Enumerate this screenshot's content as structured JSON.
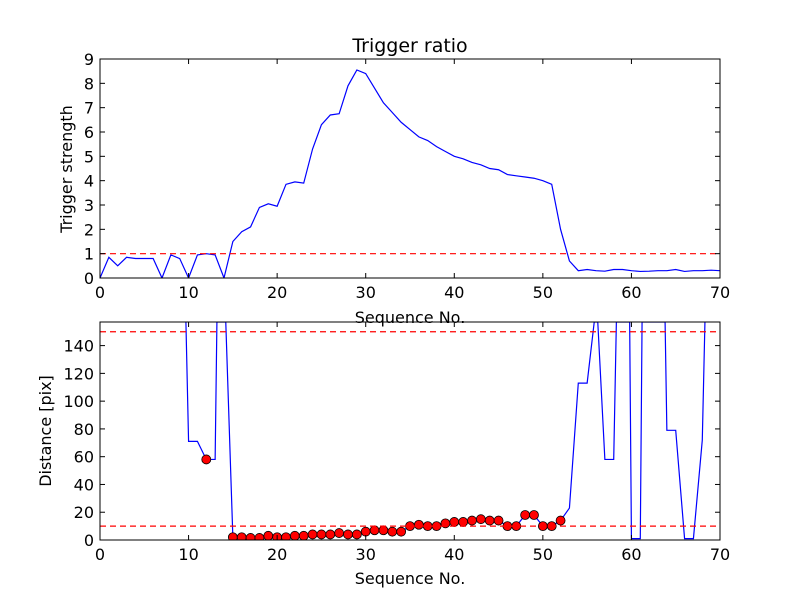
{
  "chart_data": [
    {
      "type": "line",
      "title": "Trigger ratio",
      "xlabel": "Sequence No.",
      "ylabel": "Trigger strength",
      "xlim": [
        0,
        70
      ],
      "ylim": [
        0,
        9
      ],
      "xticks": [
        0,
        10,
        20,
        30,
        40,
        50,
        60,
        70
      ],
      "yticks": [
        0,
        1,
        2,
        3,
        4,
        5,
        6,
        7,
        8,
        9
      ],
      "grid": false,
      "series": [
        {
          "color": "#0000ff",
          "style": "solid",
          "x": [
            0,
            1,
            2,
            3,
            4,
            5,
            6,
            7,
            8,
            9,
            10,
            11,
            12,
            13,
            14,
            15,
            16,
            17,
            18,
            19,
            20,
            21,
            22,
            23,
            24,
            25,
            26,
            27,
            28,
            29,
            30,
            31,
            32,
            33,
            34,
            35,
            36,
            37,
            38,
            39,
            40,
            41,
            42,
            43,
            44,
            45,
            46,
            47,
            48,
            49,
            50,
            51,
            52,
            53,
            54,
            55,
            56,
            57,
            58,
            59,
            60,
            61,
            62,
            63,
            64,
            65,
            66,
            67,
            68,
            69,
            70
          ],
          "y": [
            0,
            0.85,
            0.5,
            0.85,
            0.8,
            0.8,
            0.8,
            0,
            0.95,
            0.8,
            0,
            0.95,
            1.0,
            0.95,
            0,
            1.5,
            1.9,
            2.1,
            2.9,
            3.05,
            2.95,
            3.85,
            3.95,
            3.9,
            5.3,
            6.3,
            6.7,
            6.75,
            7.9,
            8.55,
            8.4,
            7.8,
            7.2,
            6.8,
            6.4,
            6.1,
            5.8,
            5.65,
            5.4,
            5.2,
            5.0,
            4.9,
            4.75,
            4.65,
            4.5,
            4.45,
            4.25,
            4.2,
            4.15,
            4.1,
            4.0,
            3.85,
            2.0,
            0.7,
            0.3,
            0.35,
            0.3,
            0.28,
            0.35,
            0.35,
            0.3,
            0.27,
            0.28,
            0.3,
            0.3,
            0.35,
            0.27,
            0.3,
            0.3,
            0.32,
            0.3
          ]
        },
        {
          "color": "#ff0000",
          "style": "dashed",
          "x": [
            0,
            70
          ],
          "y": [
            1,
            1
          ]
        }
      ]
    },
    {
      "type": "line",
      "title": "",
      "xlabel": "Sequence No.",
      "ylabel": "Distance [pix]",
      "xlim": [
        0,
        70
      ],
      "ylim": [
        0,
        157
      ],
      "xticks": [
        0,
        10,
        20,
        30,
        40,
        50,
        60,
        70
      ],
      "yticks": [
        0,
        20,
        40,
        60,
        80,
        100,
        120,
        140
      ],
      "grid": false,
      "series": [
        {
          "color": "#0000ff",
          "style": "solid",
          "x": [
            9.7,
            10,
            11,
            12,
            13,
            13.2,
            14,
            14.2,
            15,
            16,
            17,
            18,
            19,
            20,
            21,
            22,
            23,
            24,
            25,
            26,
            27,
            28,
            29,
            30,
            31,
            32,
            33,
            34,
            35,
            36,
            37,
            38,
            39,
            40,
            41,
            42,
            43,
            44,
            45,
            46,
            47,
            48,
            49,
            50,
            51,
            52,
            53,
            54,
            55,
            55.8,
            56.2,
            57,
            58,
            58.3,
            59,
            59.8,
            60,
            61,
            61.2,
            62,
            63,
            63.8,
            64,
            65,
            66,
            67,
            68,
            68.3
          ],
          "y": [
            157,
            71,
            71,
            58,
            58,
            157,
            157,
            157,
            2,
            2,
            1.5,
            1.5,
            3,
            2,
            2,
            3,
            3,
            4,
            4,
            4,
            5,
            4,
            4,
            6,
            7,
            7,
            6,
            6,
            10,
            11,
            10,
            10,
            12,
            13,
            13,
            14,
            15,
            14,
            14,
            10,
            10,
            18,
            18,
            10,
            10,
            14,
            23,
            113,
            113,
            157,
            157,
            58,
            58,
            157,
            157,
            157,
            1,
            1,
            157,
            157,
            157,
            157,
            79,
            79,
            1,
            1,
            72,
            157
          ]
        },
        {
          "color": "#ff0000",
          "style": "markers",
          "x": [
            12,
            15,
            16,
            17,
            18,
            19,
            20,
            21,
            22,
            23,
            24,
            25,
            26,
            27,
            28,
            29,
            30,
            31,
            32,
            33,
            34,
            35,
            36,
            37,
            38,
            39,
            40,
            41,
            42,
            43,
            44,
            45,
            46,
            47,
            48,
            49,
            50,
            51,
            52
          ],
          "y": [
            58,
            2,
            2,
            1.5,
            1.5,
            3,
            2,
            2,
            3,
            3,
            4,
            4,
            4,
            5,
            4,
            4,
            6,
            7,
            7,
            6,
            6,
            10,
            11,
            10,
            10,
            12,
            13,
            13,
            14,
            15,
            14,
            14,
            10,
            10,
            18,
            18,
            10,
            10,
            14
          ]
        },
        {
          "color": "#ff0000",
          "style": "dashed",
          "x": [
            0,
            70
          ],
          "y": [
            150,
            150
          ]
        },
        {
          "color": "#ff0000",
          "style": "dashed",
          "x": [
            0,
            70
          ],
          "y": [
            10,
            10
          ]
        }
      ]
    }
  ]
}
